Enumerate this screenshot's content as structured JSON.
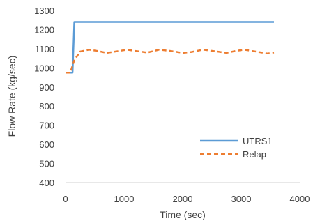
{
  "chart_data": {
    "type": "line",
    "xlabel": "Time (sec)",
    "ylabel": "Flow Rate  (kg/sec)",
    "xlim": [
      0,
      4000
    ],
    "ylim": [
      400,
      1300
    ],
    "x_ticks": [
      0,
      1000,
      2000,
      3000,
      4000
    ],
    "y_ticks": [
      400,
      500,
      600,
      700,
      800,
      900,
      1000,
      1100,
      1200,
      1300
    ],
    "grid": false,
    "legend_position": "lower-right",
    "series": [
      {
        "name": "UTRS1",
        "color": "#5b9bd5",
        "style": "solid",
        "points": [
          [
            0,
            975
          ],
          [
            120,
            975
          ],
          [
            150,
            1240
          ],
          [
            3560,
            1240
          ]
        ]
      },
      {
        "name": "Relap",
        "color": "#ed7d31",
        "style": "dashed",
        "points": [
          [
            0,
            975
          ],
          [
            80,
            975
          ],
          [
            150,
            1040
          ],
          [
            250,
            1085
          ],
          [
            400,
            1095
          ],
          [
            550,
            1088
          ],
          [
            700,
            1078
          ],
          [
            850,
            1085
          ],
          [
            1050,
            1095
          ],
          [
            1200,
            1088
          ],
          [
            1400,
            1080
          ],
          [
            1600,
            1095
          ],
          [
            1800,
            1088
          ],
          [
            2000,
            1078
          ],
          [
            2150,
            1083
          ],
          [
            2350,
            1095
          ],
          [
            2550,
            1087
          ],
          [
            2750,
            1078
          ],
          [
            2900,
            1088
          ],
          [
            3050,
            1095
          ],
          [
            3250,
            1085
          ],
          [
            3450,
            1075
          ],
          [
            3560,
            1080
          ]
        ]
      }
    ]
  }
}
